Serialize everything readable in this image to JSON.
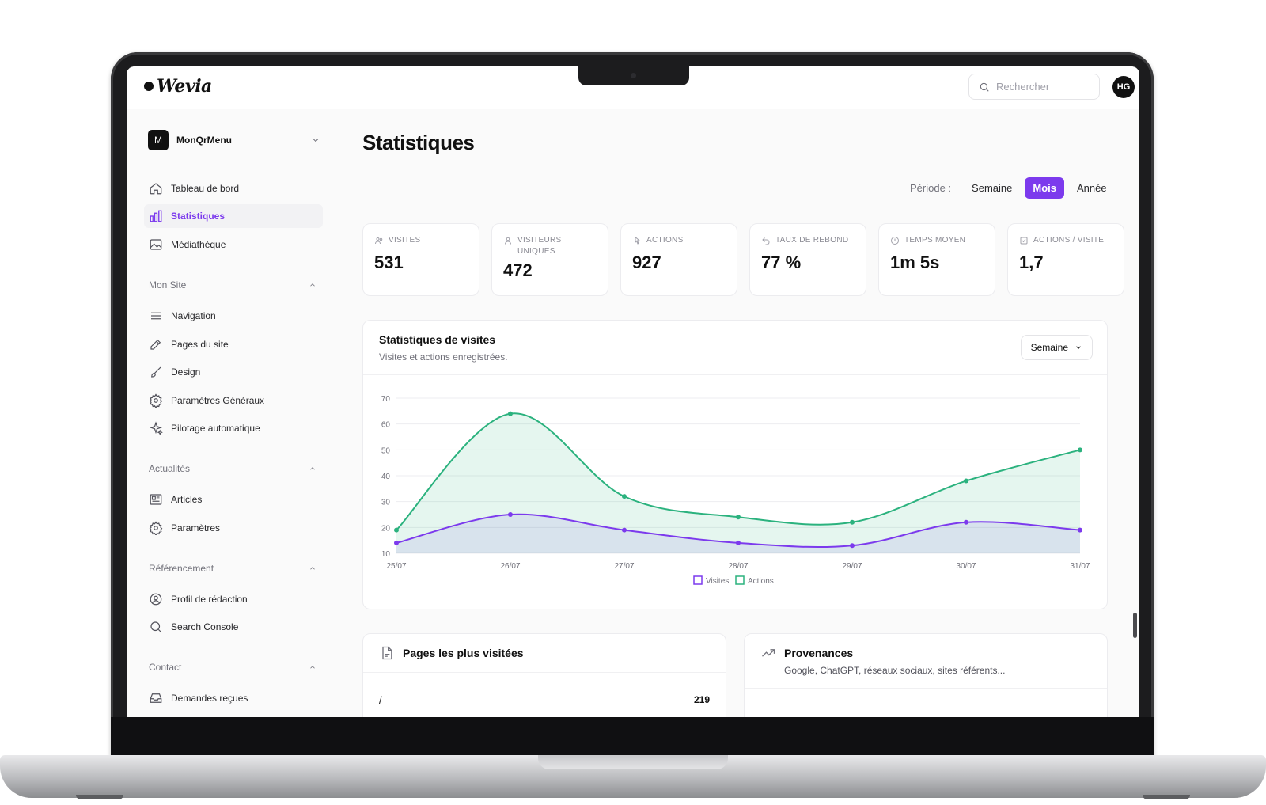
{
  "app": {
    "logo_text": "Wevia",
    "search_placeholder": "Rechercher",
    "user_initials": "HG"
  },
  "sidebar": {
    "site_badge": "M",
    "site_name": "MonQrMenu",
    "main_items": [
      {
        "label": "Tableau de bord",
        "icon": "home-icon"
      },
      {
        "label": "Statistiques",
        "icon": "bar-chart-icon",
        "active": true
      },
      {
        "label": "Médiathèque",
        "icon": "image-icon"
      }
    ],
    "sections": [
      {
        "title": "Mon Site",
        "items": [
          {
            "label": "Navigation",
            "icon": "menu-icon"
          },
          {
            "label": "Pages du site",
            "icon": "edit-icon"
          },
          {
            "label": "Design",
            "icon": "brush-icon"
          },
          {
            "label": "Paramètres Généraux",
            "icon": "gear-icon"
          },
          {
            "label": "Pilotage automatique",
            "icon": "sparkle-icon"
          }
        ]
      },
      {
        "title": "Actualités",
        "items": [
          {
            "label": "Articles",
            "icon": "newspaper-icon"
          },
          {
            "label": "Paramètres",
            "icon": "gear-icon"
          }
        ]
      },
      {
        "title": "Référencement",
        "items": [
          {
            "label": "Profil de rédaction",
            "icon": "user-circle-icon"
          },
          {
            "label": "Search Console",
            "icon": "search-icon"
          }
        ]
      },
      {
        "title": "Contact",
        "items": [
          {
            "label": "Demandes reçues",
            "icon": "inbox-icon"
          }
        ]
      }
    ]
  },
  "main": {
    "title": "Statistiques",
    "period_label": "Période :",
    "period_options": [
      "Semaine",
      "Mois",
      "Année"
    ],
    "period_selected": "Mois",
    "kpis": [
      {
        "label": "VISITES",
        "value": "531",
        "icon": "users-icon"
      },
      {
        "label": "VISITEURS UNIQUES",
        "value": "472",
        "icon": "user-icon"
      },
      {
        "label": "ACTIONS",
        "value": "927",
        "icon": "pointer-icon"
      },
      {
        "label": "TAUX DE REBOND",
        "value": "77 %",
        "icon": "undo-icon"
      },
      {
        "label": "TEMPS MOYEN",
        "value": "1m 5s",
        "icon": "clock-icon"
      },
      {
        "label": "ACTIONS / VISITE",
        "value": "1,7",
        "icon": "checklist-icon"
      }
    ],
    "chart_card": {
      "title": "Statistiques de visites",
      "subtitle": "Visites et actions enregistrées.",
      "range": "Semaine"
    },
    "pages_card": {
      "title": "Pages les plus visitées",
      "rows": [
        {
          "path": "/",
          "count": "219"
        }
      ]
    },
    "sources_card": {
      "title": "Provenances",
      "subtitle": "Google, ChatGPT, réseaux sociaux, sites référents..."
    }
  },
  "colors": {
    "accent": "#7c3aed",
    "visites": "#7c3aed",
    "actions": "#2bb27e"
  },
  "chart_data": {
    "type": "area",
    "categories": [
      "25/07",
      "26/07",
      "27/07",
      "28/07",
      "29/07",
      "30/07",
      "31/07"
    ],
    "series": [
      {
        "name": "Visites",
        "values": [
          14,
          25,
          19,
          14,
          13,
          22,
          19
        ]
      },
      {
        "name": "Actions",
        "values": [
          19,
          64,
          32,
          24,
          22,
          38,
          50
        ]
      }
    ],
    "yticks": [
      10,
      20,
      30,
      40,
      50,
      60,
      70
    ],
    "ylim": [
      10,
      70
    ],
    "grid": true,
    "legend": "bottom-center"
  }
}
